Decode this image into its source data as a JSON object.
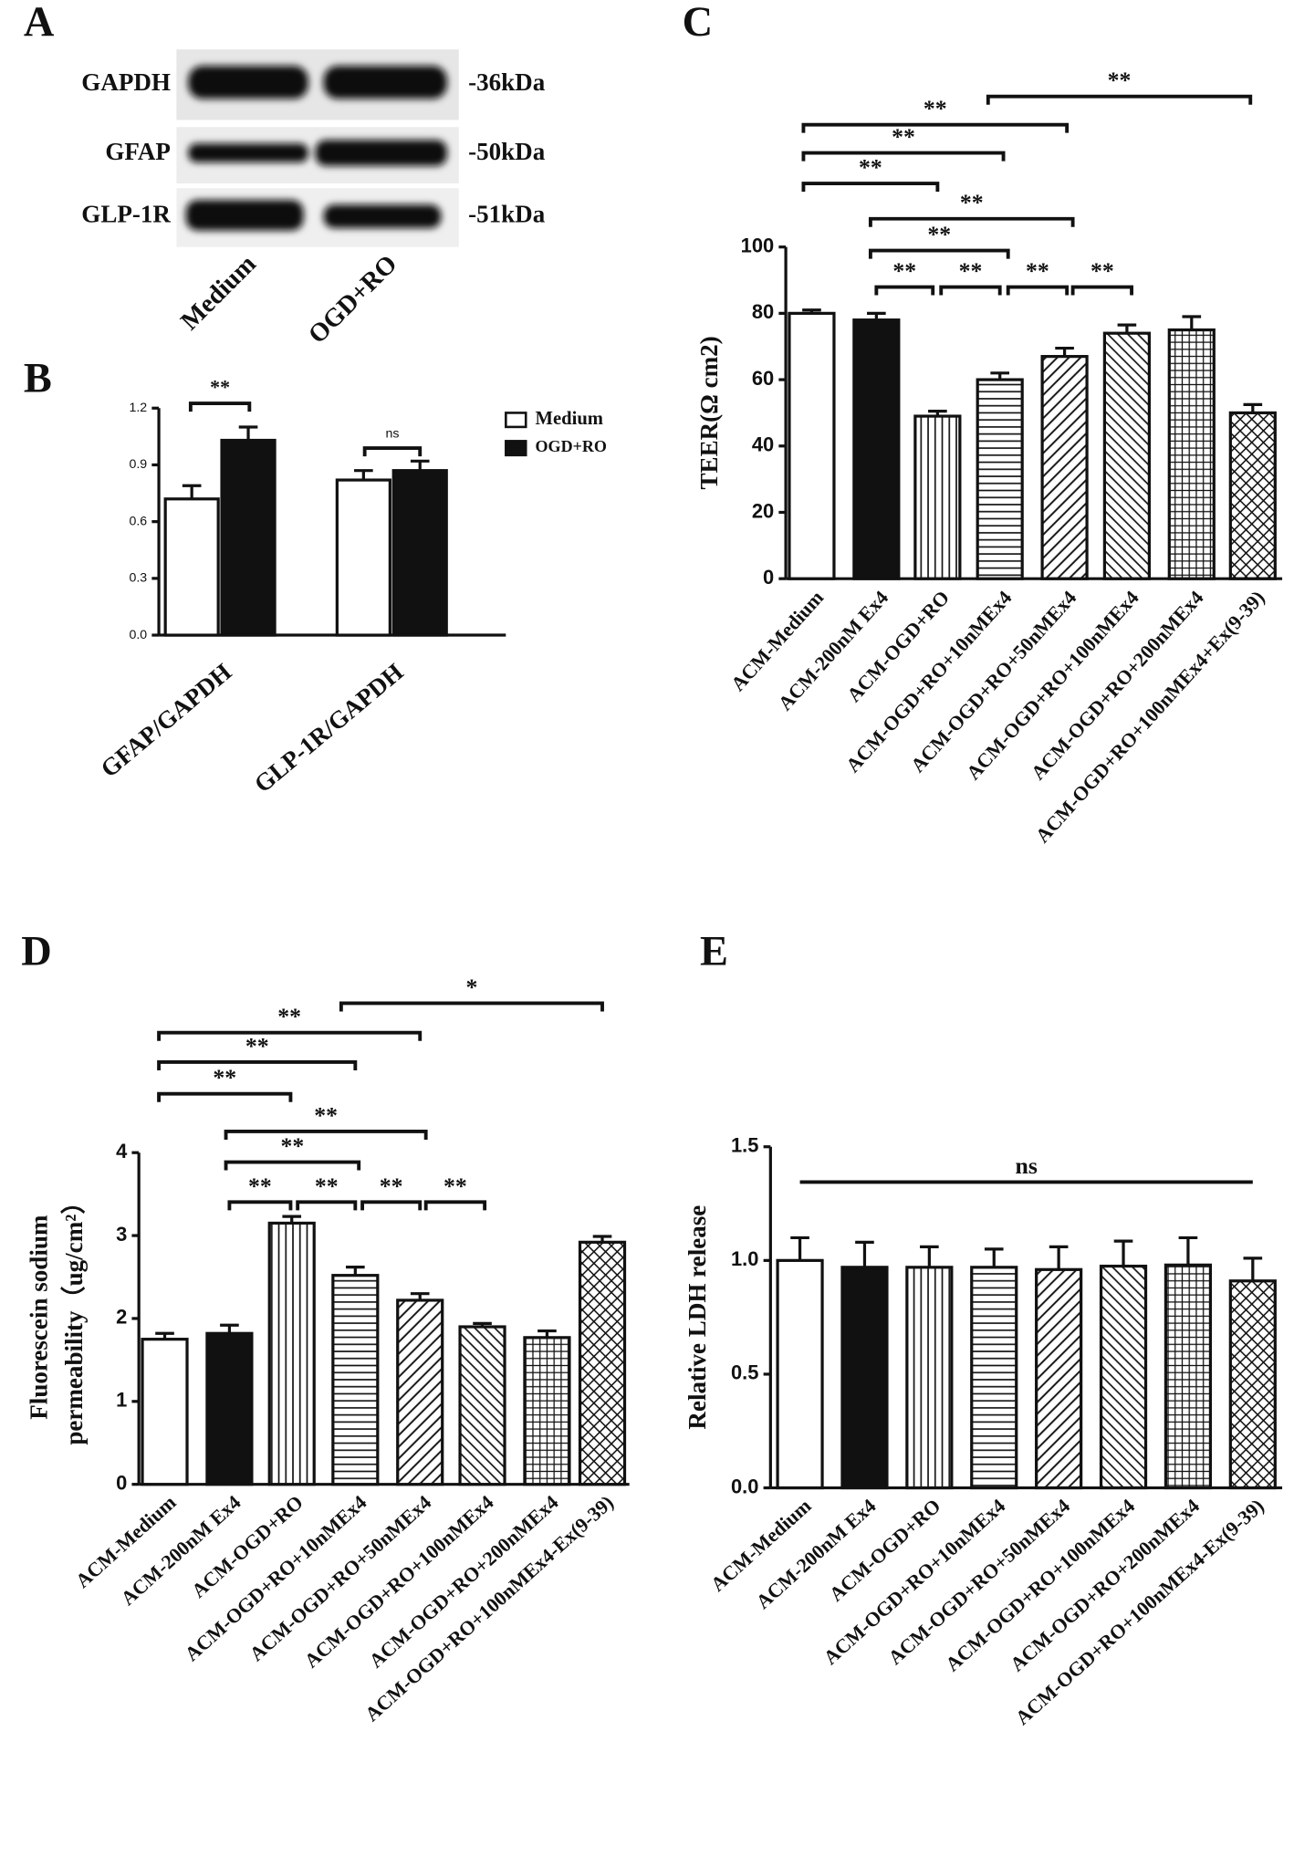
{
  "panel_labels": [
    "A",
    "B",
    "C",
    "D",
    "E"
  ],
  "blot": {
    "rows": [
      {
        "label": "GAPDH",
        "size": "-36kDa"
      },
      {
        "label": "GFAP",
        "size": "-50kDa"
      },
      {
        "label": "GLP-1R",
        "size": "-51kDa"
      }
    ],
    "lanes": [
      "Medium",
      "OGD+RO"
    ]
  },
  "chart_data": [
    {
      "type": "bar",
      "categories": [
        "GFAP/GAPDH",
        "GLP-1R/GAPDH"
      ],
      "series": [
        {
          "name": "Medium",
          "color": "#ffffff",
          "values": [
            0.72,
            0.82
          ],
          "errors": [
            0.07,
            0.05
          ]
        },
        {
          "name": "OGD+RO",
          "color": "#111111",
          "values": [
            1.03,
            0.87
          ],
          "errors": [
            0.07,
            0.05
          ]
        }
      ],
      "ylim": [
        0,
        1.2
      ],
      "yticks": [
        {
          "value": 0,
          "label": "0.0"
        },
        {
          "value": 0.3,
          "label": "0.3"
        },
        {
          "value": 0.6,
          "label": "0.6"
        },
        {
          "value": 0.9,
          "label": "0.9"
        },
        {
          "value": 1.2,
          "label": "1.2"
        }
      ],
      "annotations": [
        "**",
        "ns"
      ]
    },
    {
      "type": "bar",
      "y_label": "TEER(Ω cm2)",
      "categories": [
        "ACM-Medium",
        "ACM-200nM Ex4",
        "ACM-OGD+RO",
        "ACM-OGD+RO+10nMEx4",
        "ACM-OGD+RO+50nMEx4",
        "ACM-OGD+RO+100nMEx4",
        "ACM-OGD+RO+200nMEx4",
        "ACM-OGD+RO+100nMEx4+Ex(9-39)"
      ],
      "values": [
        80,
        78,
        49,
        60,
        67,
        74,
        75,
        50
      ],
      "errors": [
        1,
        2,
        1.5,
        2,
        2.5,
        2.5,
        4,
        2.5
      ],
      "ylim": [
        0,
        100
      ],
      "yticks": [
        0,
        20,
        40,
        60,
        80,
        100
      ],
      "annotations": [
        "**",
        "**",
        "**",
        "**",
        "**",
        "**",
        "**",
        "**",
        "**",
        "**"
      ]
    },
    {
      "type": "bar",
      "y_label": [
        "Fluorescein sodium",
        "permeability（ug/cm²）"
      ],
      "categories": [
        "ACM-Medium",
        "ACM-200nM Ex4",
        "ACM-OGD+RO",
        "ACM-OGD+RO+10nMEx4",
        "ACM-OGD+RO+50nMEx4",
        "ACM-OGD+RO+100nMEx4",
        "ACM-OGD+RO+200nMEx4",
        "ACM-OGD+RO+100nMEx4-Ex(9-39)"
      ],
      "values": [
        1.75,
        1.82,
        3.15,
        2.52,
        2.22,
        1.9,
        1.77,
        2.92
      ],
      "errors": [
        0.07,
        0.1,
        0.08,
        0.1,
        0.08,
        0.04,
        0.08,
        0.07
      ],
      "ylim": [
        0,
        4
      ],
      "yticks": [
        0,
        1,
        2,
        3,
        4
      ],
      "annotations": [
        "*",
        "**",
        "**",
        "**",
        "**",
        "**",
        "**",
        "**",
        "**",
        "**"
      ]
    },
    {
      "type": "bar",
      "y_label": "Relative LDH release",
      "categories": [
        "ACM-Medium",
        "ACM-200nM Ex4",
        "ACM-OGD+RO",
        "ACM-OGD+RO+10nMEx4",
        "ACM-OGD+RO+50nMEx4",
        "ACM-OGD+RO+100nMEx4",
        "ACM-OGD+RO+200nMEx4",
        "ACM-OGD+RO+100nMEx4-Ex(9-39)"
      ],
      "values": [
        1.0,
        0.97,
        0.97,
        0.97,
        0.96,
        0.975,
        0.98,
        0.91
      ],
      "errors": [
        0.1,
        0.11,
        0.09,
        0.08,
        0.1,
        0.11,
        0.12,
        0.1
      ],
      "ylim": [
        0,
        1.5
      ],
      "yticks": [
        {
          "value": 0,
          "label": "0.0"
        },
        {
          "value": 0.5,
          "label": "0.5"
        },
        {
          "value": 1,
          "label": "1.0"
        },
        {
          "value": 1.5,
          "label": "1.5"
        }
      ],
      "annotations": [
        "ns"
      ]
    }
  ]
}
